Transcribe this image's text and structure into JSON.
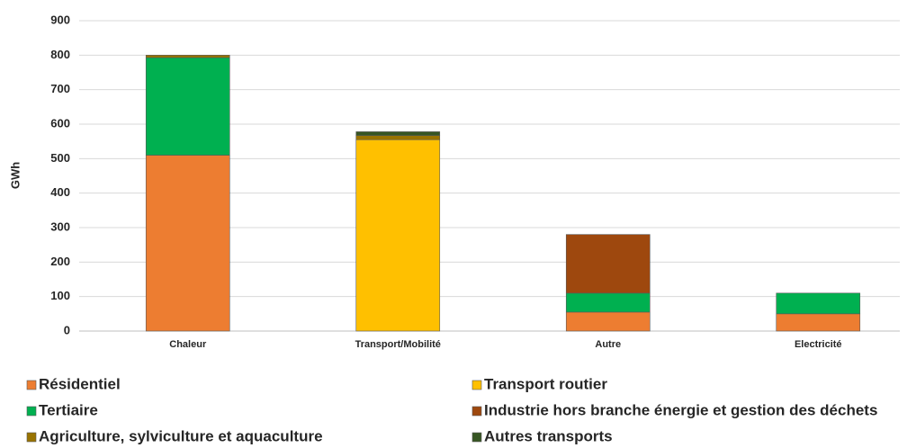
{
  "chart_data": {
    "type": "stacked_bar",
    "y_label": "GWh",
    "categories": [
      "Chaleur",
      "Transport/Mobilité",
      "Autre",
      "Electricité"
    ],
    "series": [
      {
        "name": "Résidentiel",
        "color": "#ED7D31",
        "values": [
          510,
          0,
          55,
          50
        ]
      },
      {
        "name": "Transport routier",
        "color": "#FFC000",
        "values": [
          0,
          555,
          0,
          0
        ]
      },
      {
        "name": "Tertiaire",
        "color": "#00B050",
        "values": [
          283,
          0,
          55,
          60
        ]
      },
      {
        "name": "Industrie hors branche énergie et gestion des déchets",
        "color": "#9E480E",
        "values": [
          0,
          0,
          170,
          0
        ]
      },
      {
        "name": "Agriculture, sylviculture et aquaculture",
        "color": "#997300",
        "values": [
          7,
          12,
          0,
          0
        ]
      },
      {
        "name": "Autres transports",
        "color": "#375623",
        "values": [
          0,
          11,
          0,
          0
        ]
      }
    ],
    "ylim": [
      0,
      900
    ],
    "yticks": [
      0,
      100,
      200,
      300,
      400,
      500,
      600,
      700,
      800,
      900
    ],
    "grid": true
  }
}
